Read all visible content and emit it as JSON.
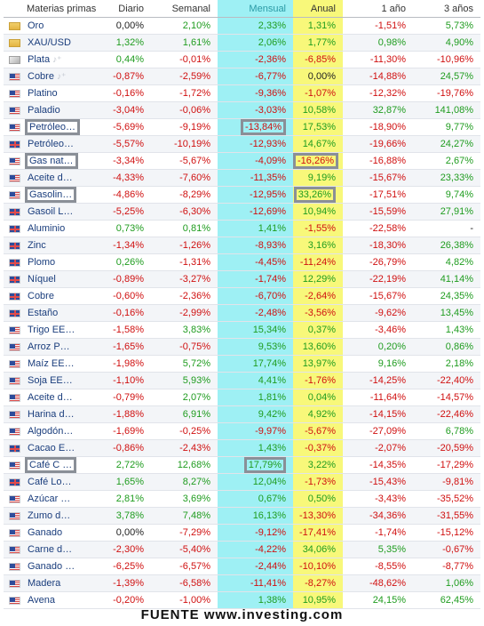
{
  "header": {
    "name": "Materias primas",
    "daily": "Diario",
    "weekly": "Semanal",
    "monthly": "Mensual",
    "annual": "Anual",
    "one_year": "1 año",
    "three_years": "3 años"
  },
  "rows": [
    {
      "flag": "folder",
      "name": "Oro",
      "d": "0,00%",
      "w": "2,10%",
      "m": "2,33%",
      "a": "1,31%",
      "y1": "-1,51%",
      "y3": "5,73%"
    },
    {
      "flag": "folder",
      "name": "XAU/USD",
      "d": "1,32%",
      "w": "1,61%",
      "m": "2,06%",
      "a": "1,77%",
      "y1": "0,98%",
      "y3": "4,90%"
    },
    {
      "flag": "silver",
      "name": "Plata",
      "alert": true,
      "d": "0,44%",
      "w": "-0,01%",
      "m": "-2,36%",
      "a": "-6,85%",
      "y1": "-11,30%",
      "y3": "-10,96%"
    },
    {
      "flag": "us",
      "name": "Cobre",
      "alert": true,
      "d": "-0,87%",
      "w": "-2,59%",
      "m": "-6,77%",
      "a": "0,00%",
      "y1": "-14,88%",
      "y3": "24,57%"
    },
    {
      "flag": "us",
      "name": "Platino",
      "d": "-0,16%",
      "w": "-1,72%",
      "m": "-9,36%",
      "a": "-1,07%",
      "y1": "-12,32%",
      "y3": "-19,76%"
    },
    {
      "flag": "us",
      "name": "Paladio",
      "d": "-3,04%",
      "w": "-0,06%",
      "m": "-3,03%",
      "a": "10,58%",
      "y1": "32,87%",
      "y3": "141,08%"
    },
    {
      "flag": "us",
      "name": "Petróleo…",
      "d": "-5,69%",
      "w": "-9,19%",
      "m": "-13,84%",
      "a": "17,53%",
      "y1": "-18,90%",
      "y3": "9,77%",
      "hl": [
        "name",
        "m"
      ]
    },
    {
      "flag": "uk",
      "name": "Petróleo…",
      "d": "-5,57%",
      "w": "-10,19%",
      "m": "-12,93%",
      "a": "14,67%",
      "y1": "-19,66%",
      "y3": "24,27%"
    },
    {
      "flag": "us",
      "name": "Gas nat…",
      "d": "-3,34%",
      "w": "-5,67%",
      "m": "-4,09%",
      "a": "-16,26%",
      "y1": "-16,88%",
      "y3": "2,67%",
      "hl": [
        "name",
        "a"
      ]
    },
    {
      "flag": "us",
      "name": "Aceite d…",
      "d": "-4,33%",
      "w": "-7,60%",
      "m": "-11,35%",
      "a": "9,19%",
      "y1": "-15,67%",
      "y3": "23,33%"
    },
    {
      "flag": "us",
      "name": "Gasolin…",
      "d": "-4,86%",
      "w": "-8,29%",
      "m": "-12,95%",
      "a": "33,26%",
      "y1": "-17,51%",
      "y3": "9,74%",
      "hl": [
        "name",
        "a"
      ]
    },
    {
      "flag": "uk",
      "name": "Gasoil L…",
      "d": "-5,25%",
      "w": "-6,30%",
      "m": "-12,69%",
      "a": "10,94%",
      "y1": "-15,59%",
      "y3": "27,91%"
    },
    {
      "flag": "uk",
      "name": "Aluminio",
      "d": "0,73%",
      "w": "0,81%",
      "m": "1,41%",
      "a": "-1,55%",
      "y1": "-22,58%",
      "y3": "-"
    },
    {
      "flag": "uk",
      "name": "Zinc",
      "d": "-1,34%",
      "w": "-1,26%",
      "m": "-8,93%",
      "a": "3,16%",
      "y1": "-18,30%",
      "y3": "26,38%"
    },
    {
      "flag": "uk",
      "name": "Plomo",
      "d": "0,26%",
      "w": "-1,31%",
      "m": "-4,45%",
      "a": "-11,24%",
      "y1": "-26,79%",
      "y3": "4,82%"
    },
    {
      "flag": "uk",
      "name": "Níquel",
      "d": "-0,89%",
      "w": "-3,27%",
      "m": "-1,74%",
      "a": "12,29%",
      "y1": "-22,19%",
      "y3": "41,14%"
    },
    {
      "flag": "uk",
      "name": "Cobre",
      "d": "-0,60%",
      "w": "-2,36%",
      "m": "-6,70%",
      "a": "-2,64%",
      "y1": "-15,67%",
      "y3": "24,35%"
    },
    {
      "flag": "uk",
      "name": "Estaño",
      "d": "-0,16%",
      "w": "-2,99%",
      "m": "-2,48%",
      "a": "-3,56%",
      "y1": "-9,62%",
      "y3": "13,45%"
    },
    {
      "flag": "us",
      "name": "Trigo EE…",
      "d": "-1,58%",
      "w": "3,83%",
      "m": "15,34%",
      "a": "0,37%",
      "y1": "-3,46%",
      "y3": "1,43%"
    },
    {
      "flag": "us",
      "name": "Arroz P…",
      "d": "-1,65%",
      "w": "-0,75%",
      "m": "9,53%",
      "a": "13,60%",
      "y1": "0,20%",
      "y3": "0,86%"
    },
    {
      "flag": "us",
      "name": "Maíz EE…",
      "d": "-1,98%",
      "w": "5,72%",
      "m": "17,74%",
      "a": "13,97%",
      "y1": "9,16%",
      "y3": "2,18%"
    },
    {
      "flag": "us",
      "name": "Soja EE…",
      "d": "-1,10%",
      "w": "5,93%",
      "m": "4,41%",
      "a": "-1,76%",
      "y1": "-14,25%",
      "y3": "-22,40%"
    },
    {
      "flag": "us",
      "name": "Aceite d…",
      "d": "-0,79%",
      "w": "2,07%",
      "m": "1,81%",
      "a": "0,04%",
      "y1": "-11,64%",
      "y3": "-14,57%"
    },
    {
      "flag": "us",
      "name": "Harina d…",
      "d": "-1,88%",
      "w": "6,91%",
      "m": "9,42%",
      "a": "4,92%",
      "y1": "-14,15%",
      "y3": "-22,46%"
    },
    {
      "flag": "us",
      "name": "Algodón…",
      "d": "-1,69%",
      "w": "-0,25%",
      "m": "-9,97%",
      "a": "-5,67%",
      "y1": "-27,09%",
      "y3": "6,78%"
    },
    {
      "flag": "uk",
      "name": "Cacao E…",
      "d": "-0,86%",
      "w": "-2,43%",
      "m": "1,43%",
      "a": "-0,37%",
      "y1": "-2,07%",
      "y3": "-20,59%"
    },
    {
      "flag": "us",
      "name": "Café C …",
      "d": "2,72%",
      "w": "12,68%",
      "m": "17,79%",
      "a": "3,22%",
      "y1": "-14,35%",
      "y3": "-17,29%",
      "hl": [
        "name",
        "m"
      ]
    },
    {
      "flag": "uk",
      "name": "Café Lo…",
      "d": "1,65%",
      "w": "8,27%",
      "m": "12,04%",
      "a": "-1,73%",
      "y1": "-15,43%",
      "y3": "-9,81%"
    },
    {
      "flag": "us",
      "name": "Azúcar …",
      "d": "2,81%",
      "w": "3,69%",
      "m": "0,67%",
      "a": "0,50%",
      "y1": "-3,43%",
      "y3": "-35,52%"
    },
    {
      "flag": "us",
      "name": "Zumo d…",
      "d": "3,78%",
      "w": "7,48%",
      "m": "16,13%",
      "a": "-13,30%",
      "y1": "-34,36%",
      "y3": "-31,55%"
    },
    {
      "flag": "us",
      "name": "Ganado",
      "d": "0,00%",
      "w": "-7,29%",
      "m": "-9,12%",
      "a": "-17,41%",
      "y1": "-1,74%",
      "y3": "-15,12%"
    },
    {
      "flag": "us",
      "name": "Carne d…",
      "d": "-2,30%",
      "w": "-5,40%",
      "m": "-4,22%",
      "a": "34,06%",
      "y1": "5,35%",
      "y3": "-0,67%"
    },
    {
      "flag": "us",
      "name": "Ganado …",
      "d": "-6,25%",
      "w": "-6,57%",
      "m": "-2,44%",
      "a": "-10,10%",
      "y1": "-8,55%",
      "y3": "-8,77%"
    },
    {
      "flag": "us",
      "name": "Madera",
      "d": "-1,39%",
      "w": "-6,58%",
      "m": "-11,41%",
      "a": "-8,27%",
      "y1": "-48,62%",
      "y3": "1,06%"
    },
    {
      "flag": "us",
      "name": "Avena",
      "d": "-0,20%",
      "w": "-1,00%",
      "m": "1,38%",
      "a": "10,95%",
      "y1": "24,15%",
      "y3": "62,45%"
    }
  ],
  "source": "FUENTE www.investing.com",
  "colors": {
    "positive": "#1f9c1f",
    "negative": "#d01010",
    "monthly_highlight": "#9ef0f4",
    "annual_highlight": "#f8f87a",
    "box": "#8a8f97"
  }
}
